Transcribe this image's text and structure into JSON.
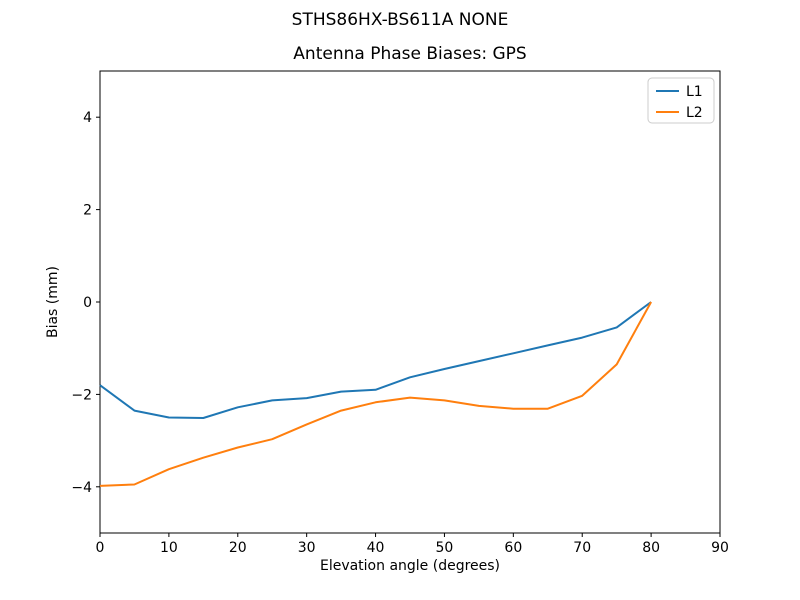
{
  "figure": {
    "suptitle": "STHS86HX-BS611A NONE"
  },
  "chart_data": {
    "type": "line",
    "title": "STHS86HX-BS611A NONE",
    "subtitle": "Antenna Phase Biases: GPS",
    "xlabel": "Elevation angle (degrees)",
    "ylabel": "Bias (mm)",
    "xlim": [
      0,
      90
    ],
    "ylim": [
      -5,
      5
    ],
    "xticks": [
      0,
      10,
      20,
      30,
      40,
      50,
      60,
      70,
      80,
      90
    ],
    "yticks": [
      -4,
      -2,
      0,
      2,
      4
    ],
    "grid": false,
    "legend_position": "upper right",
    "background": "#ffffff",
    "spine_color": "#000000",
    "x": [
      0,
      5,
      10,
      15,
      20,
      25,
      30,
      35,
      40,
      45,
      50,
      55,
      60,
      65,
      70,
      75,
      80
    ],
    "series": [
      {
        "name": "L1",
        "color": "#1f77b4",
        "values": [
          -1.8,
          -2.35,
          -2.5,
          -2.51,
          -2.28,
          -2.13,
          -2.08,
          -1.94,
          -1.9,
          -1.63,
          -1.45,
          -1.28,
          -1.11,
          -0.94,
          -0.77,
          -0.55,
          0.0
        ]
      },
      {
        "name": "L2",
        "color": "#ff7f0e",
        "values": [
          -3.98,
          -3.95,
          -3.62,
          -3.37,
          -3.15,
          -2.97,
          -2.65,
          -2.35,
          -2.17,
          -2.07,
          -2.13,
          -2.25,
          -2.31,
          -2.31,
          -2.03,
          -1.35,
          0.0
        ]
      }
    ]
  }
}
